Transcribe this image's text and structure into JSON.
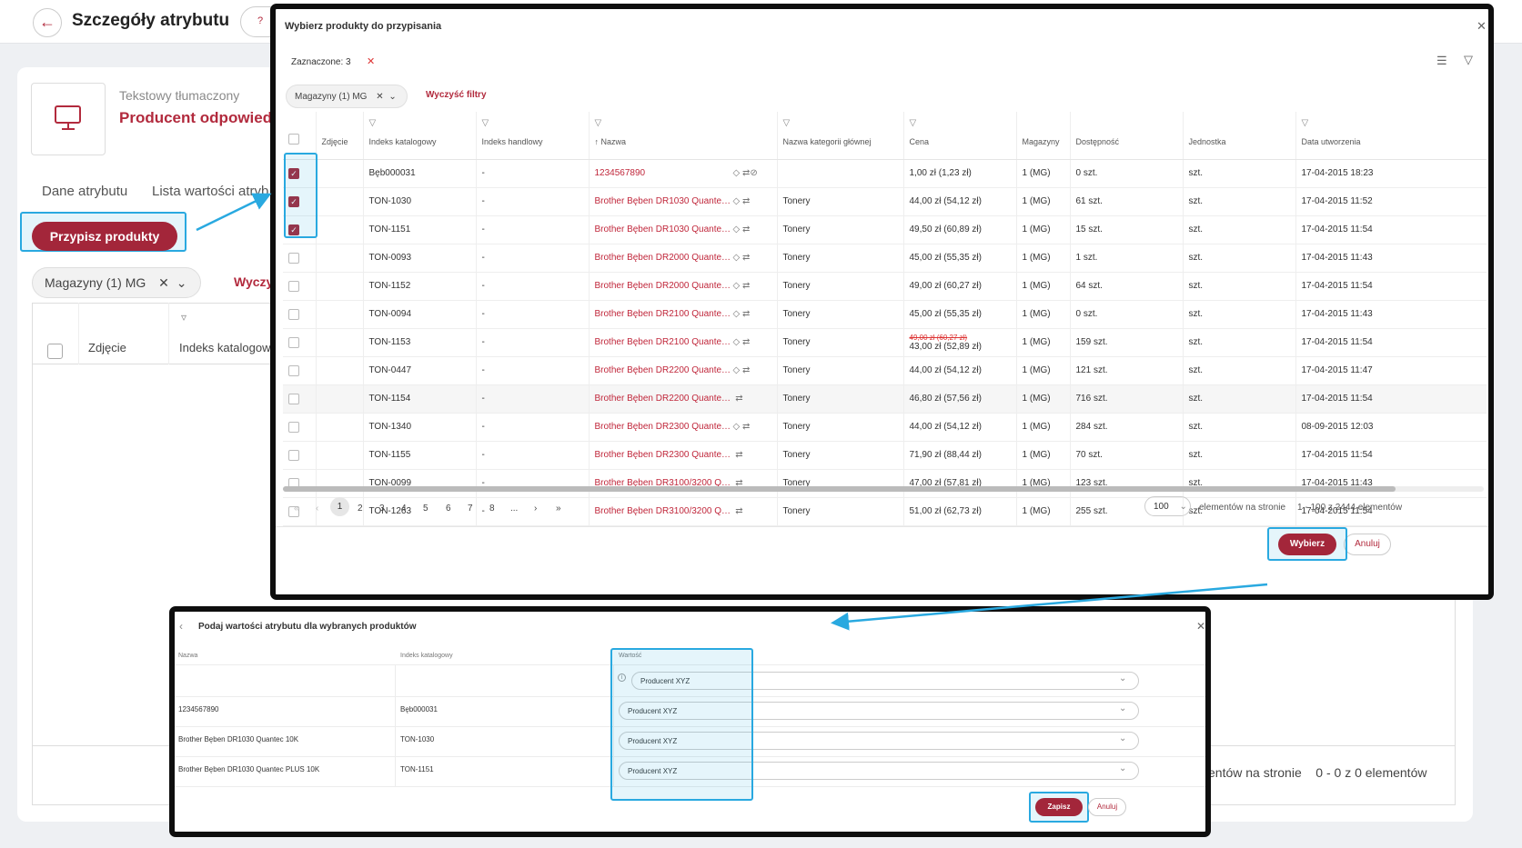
{
  "background": {
    "page_title": "Szczegóły atrybutu",
    "help": "?",
    "attribute_type": "Tekstowy tłumaczony",
    "attribute_name": "Producent odpowiedz",
    "tabs": [
      "Dane atrybutu",
      "Lista wartości atryb"
    ],
    "assign_button": "Przypisz produkty",
    "filter_chip": "Magazyny (1) MG",
    "clear_filters": "Wyczy",
    "columns": [
      "Zdjęcie",
      "Indeks katalogow"
    ],
    "pagination_text": "entów na stronie    0 - 0 z 0 elementów"
  },
  "modal_products": {
    "title": "Wybierz produkty do przypisania",
    "selected_label": "Zaznaczone: 3",
    "filter_chip": "Magazyny (1) MG",
    "clear_filters": "Wyczyść filtry",
    "columns": [
      "Zdjęcie",
      "Indeks katalogowy",
      "Indeks handlowy",
      "Nazwa",
      "Nazwa kategorii głównej",
      "Cena",
      "Magazyny",
      "Dostępność",
      "Jednostka",
      "Data utworzenia"
    ],
    "sort_arrow": "↑",
    "rows": [
      {
        "checked": true,
        "index": "Bęb000031",
        "trade": "-",
        "name": "1234567890",
        "category": "",
        "price_old": "",
        "price": "1,00 zł (1,23 zł)",
        "warehouse": "1 (MG)",
        "stock": "0 szt.",
        "stock_ok": false,
        "unit": "szt.",
        "created": "17-04-2015 18:23"
      },
      {
        "checked": true,
        "index": "TON-1030",
        "trade": "-",
        "name": "Brother Bęben DR1030 Quantec ...",
        "category": "Tonery",
        "price_old": "",
        "price": "44,00 zł (54,12 zł)",
        "warehouse": "1 (MG)",
        "stock": "61 szt.",
        "stock_ok": true,
        "unit": "szt.",
        "created": "17-04-2015 11:52"
      },
      {
        "checked": true,
        "index": "TON-1151",
        "trade": "-",
        "name": "Brother Bęben DR1030 Quantec ...",
        "category": "Tonery",
        "price_old": "",
        "price": "49,50 zł (60,89 zł)",
        "warehouse": "1 (MG)",
        "stock": "15 szt.",
        "stock_ok": true,
        "unit": "szt.",
        "created": "17-04-2015 11:54"
      },
      {
        "checked": false,
        "index": "TON-0093",
        "trade": "-",
        "name": "Brother Bęben DR2000 Quantec...",
        "category": "Tonery",
        "price_old": "",
        "price": "45,00 zł (55,35 zł)",
        "warehouse": "1 (MG)",
        "stock": "1 szt.",
        "stock_ok": true,
        "unit": "szt.",
        "created": "17-04-2015 11:43"
      },
      {
        "checked": false,
        "index": "TON-1152",
        "trade": "-",
        "name": "Brother Bęben DR2000 Quantec...",
        "category": "Tonery",
        "price_old": "",
        "price": "49,00 zł (60,27 zł)",
        "warehouse": "1 (MG)",
        "stock": "64 szt.",
        "stock_ok": true,
        "unit": "szt.",
        "created": "17-04-2015 11:54"
      },
      {
        "checked": false,
        "index": "TON-0094",
        "trade": "-",
        "name": "Brother Bęben DR2100 Quantec ...",
        "category": "Tonery",
        "price_old": "",
        "price": "45,00 zł (55,35 zł)",
        "warehouse": "1 (MG)",
        "stock": "0 szt.",
        "stock_ok": false,
        "unit": "szt.",
        "created": "17-04-2015 11:43"
      },
      {
        "checked": false,
        "index": "TON-1153",
        "trade": "-",
        "name": "Brother Bęben DR2100 Quantec ...",
        "category": "Tonery",
        "price_old": "49,00 zł (60,27 zł)",
        "price": "43,00 zł (52,89 zł)",
        "warehouse": "1 (MG)",
        "stock": "159 szt.",
        "stock_ok": true,
        "unit": "szt.",
        "created": "17-04-2015 11:54"
      },
      {
        "checked": false,
        "index": "TON-0447",
        "trade": "-",
        "name": "Brother Bęben DR2200 Quantec...",
        "category": "Tonery",
        "price_old": "",
        "price": "44,00 zł (54,12 zł)",
        "warehouse": "1 (MG)",
        "stock": "121 szt.",
        "stock_ok": true,
        "unit": "szt.",
        "created": "17-04-2015 11:47"
      },
      {
        "checked": false,
        "index": "TON-1154",
        "trade": "-",
        "name": "Brother Bęben DR2200 Quantec PL...",
        "category": "Tonery",
        "price_old": "",
        "price": "46,80 zł (57,56 zł)",
        "warehouse": "1 (MG)",
        "stock": "716 szt.",
        "stock_ok": true,
        "unit": "szt.",
        "created": "17-04-2015 11:54"
      },
      {
        "checked": false,
        "index": "TON-1340",
        "trade": "-",
        "name": "Brother Bęben DR2300 Quantec...",
        "category": "Tonery",
        "price_old": "",
        "price": "44,00 zł (54,12 zł)",
        "warehouse": "1 (MG)",
        "stock": "284 szt.",
        "stock_ok": true,
        "unit": "szt.",
        "created": "08-09-2015 12:03"
      },
      {
        "checked": false,
        "index": "TON-1155",
        "trade": "-",
        "name": "Brother Bęben DR2300 Quantec PL...",
        "category": "Tonery",
        "price_old": "",
        "price": "71,90 zł (88,44 zł)",
        "warehouse": "1 (MG)",
        "stock": "70 szt.",
        "stock_ok": true,
        "unit": "szt.",
        "created": "17-04-2015 11:54"
      },
      {
        "checked": false,
        "index": "TON-0099",
        "trade": "-",
        "name": "Brother Bęben DR3100/3200 Quan...",
        "category": "Tonery",
        "price_old": "",
        "price": "47,00 zł (57,81 zł)",
        "warehouse": "1 (MG)",
        "stock": "123 szt.",
        "stock_ok": true,
        "unit": "szt.",
        "created": "17-04-2015 11:43"
      },
      {
        "checked": false,
        "index": "TON-1263",
        "trade": "-",
        "name": "Brother Bęben DR3100/3200 Quan...",
        "category": "Tonery",
        "price_old": "",
        "price": "51,00 zł (62,73 zł)",
        "warehouse": "1 (MG)",
        "stock": "255 szt.",
        "stock_ok": true,
        "unit": "szt.",
        "created": "17-04-2015 11:54"
      }
    ],
    "pagination": {
      "first": "«",
      "prev": "‹",
      "next": "›",
      "last": "»",
      "pages": [
        "1",
        "2",
        "3",
        "4",
        "5",
        "6",
        "7",
        "8",
        "..."
      ],
      "page_size": "100",
      "per_page_label": "elementów na stronie",
      "total_label": "1 - 100 z 2444 elementów"
    },
    "choose_button": "Wybierz",
    "cancel_button": "Anuluj"
  },
  "modal_values": {
    "title": "Podaj wartości atrybutu dla wybranych produktów",
    "columns": [
      "Nazwa",
      "Indeks katalogowy",
      "Wartość"
    ],
    "bulk_value": "Producent XYZ",
    "rows": [
      {
        "name": "1234567890",
        "index": "Bęb000031",
        "value": "Producent XYZ"
      },
      {
        "name": "Brother Bęben DR1030 Quantec 10K",
        "index": "TON-1030",
        "value": "Producent XYZ"
      },
      {
        "name": "Brother Bęben DR1030 Quantec PLUS 10K",
        "index": "TON-1151",
        "value": "Producent XYZ"
      }
    ],
    "save_button": "Zapisz",
    "cancel_button": "Anuluj"
  },
  "colors": {
    "accent": "#a3263a",
    "link": "#c0273b",
    "ok": "#3aa142",
    "highlight": "#29a9e0"
  }
}
